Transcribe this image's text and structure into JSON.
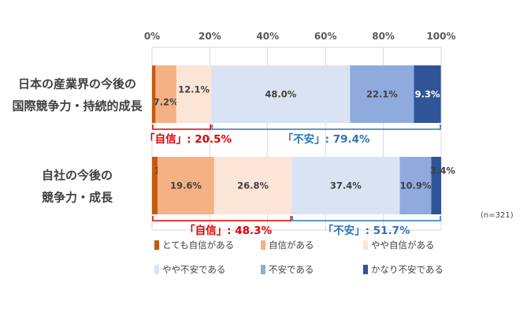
{
  "chart_data": {
    "type": "bar",
    "orientation": "horizontal",
    "stacked": true,
    "percent": true,
    "categories": [
      "日本の産業界の今後の\n国際競争力・持続的成長",
      "自社の今後の\n競争力・成長"
    ],
    "category_lines": [
      [
        "日本の産業界の今後の",
        "国際競争力・持続的成長"
      ],
      [
        "自社の今後の",
        "競争力・成長"
      ]
    ],
    "series": [
      {
        "name": "とても自信がある",
        "color": "#C55A11",
        "values": [
          1.2,
          1.9
        ],
        "labels": [
          "1.2%",
          "1.9%"
        ]
      },
      {
        "name": "自信がある",
        "color": "#F4B183",
        "values": [
          7.2,
          19.6
        ],
        "labels": [
          "7.2%",
          "19.6%"
        ]
      },
      {
        "name": "やや自信がある",
        "color": "#FBE5D6",
        "values": [
          12.1,
          26.8
        ],
        "labels": [
          "12.1%",
          "26.8%"
        ]
      },
      {
        "name": "やや不安である",
        "color": "#DAE3F3",
        "values": [
          48.0,
          37.4
        ],
        "labels": [
          "48.0%",
          "37.4%"
        ]
      },
      {
        "name": "不安である",
        "color": "#8FAADC",
        "values": [
          22.1,
          10.9
        ],
        "labels": [
          "22.1%",
          "10.9%"
        ]
      },
      {
        "name": "かなり不安である",
        "color": "#2F5597",
        "values": [
          9.3,
          3.4
        ],
        "labels": [
          "9.3%",
          "3.4%"
        ]
      }
    ],
    "x_ticks": [
      "0%",
      "20%",
      "40%",
      "60%",
      "80%",
      "100%"
    ],
    "xlim": [
      0,
      100
    ],
    "grid": true,
    "legend_position": "bottom",
    "annotations": [
      {
        "row": 0,
        "text": "「自信」: 20.5%",
        "range": [
          0,
          20.5
        ],
        "color": "#E00000"
      },
      {
        "row": 0,
        "text": "「不安」: 79.4%",
        "range": [
          20.5,
          100
        ],
        "color": "#2E75B6"
      },
      {
        "row": 1,
        "text": "「自信」: 48.3%",
        "range": [
          0,
          48.3
        ],
        "color": "#E00000"
      },
      {
        "row": 1,
        "text": "「不安」: 51.7%",
        "range": [
          48.3,
          100
        ],
        "color": "#2E75B6"
      }
    ]
  },
  "note": "(n=321)"
}
